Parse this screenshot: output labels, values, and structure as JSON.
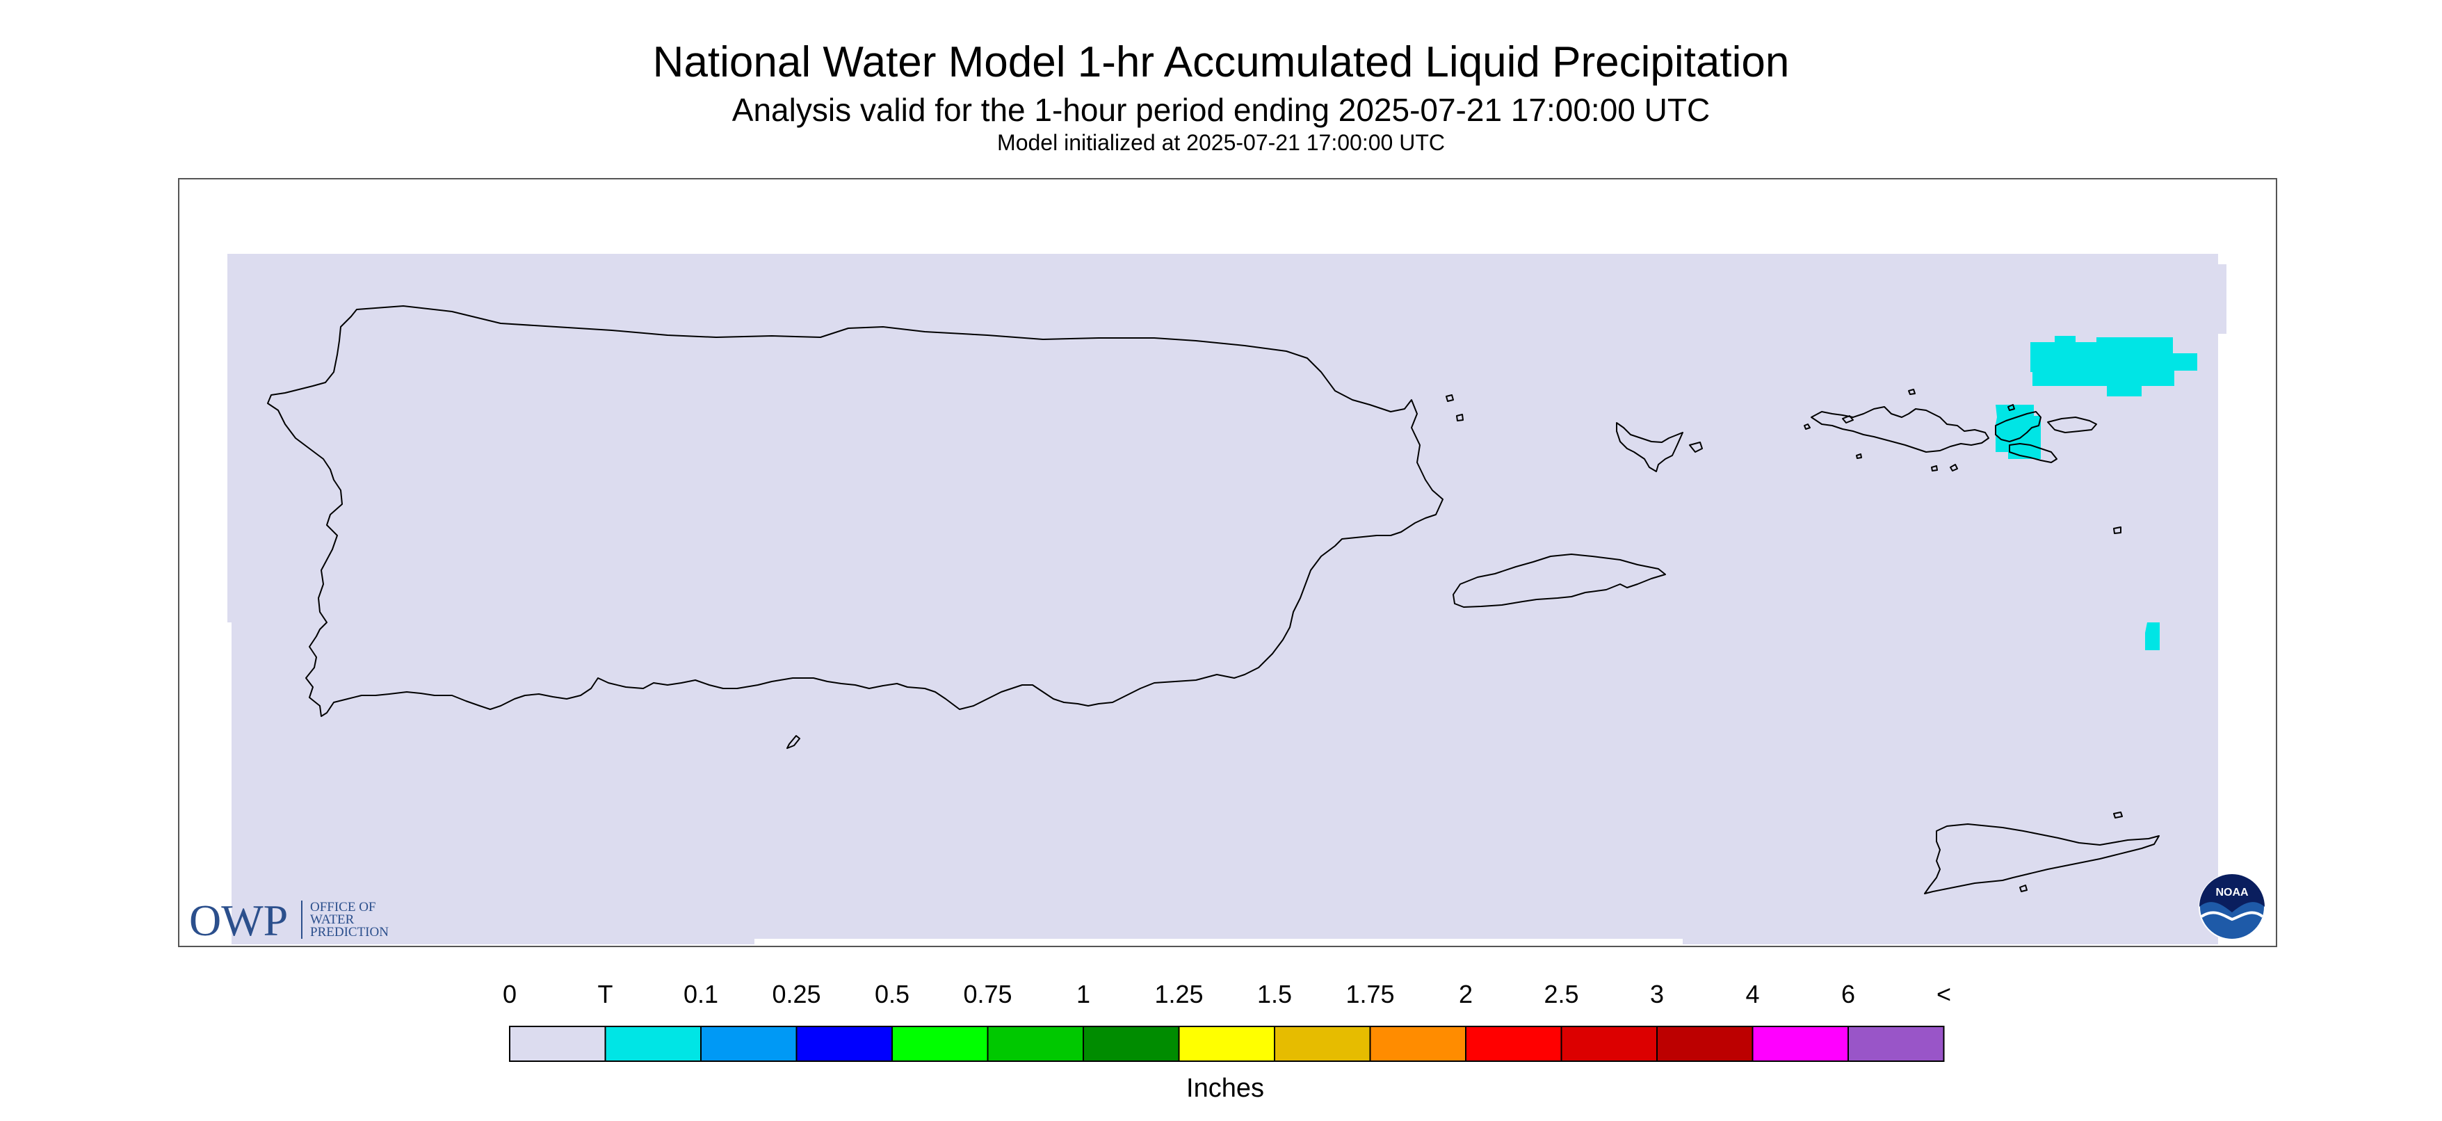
{
  "header": {
    "title": "National Water Model 1-hr Accumulated Liquid Precipitation",
    "subtitle": "Analysis valid for the 1-hour period ending 2025-07-21 17:00:00 UTC",
    "init": "Model initialized at 2025-07-21 17:00:00 UTC"
  },
  "logos": {
    "owp": {
      "mark": "OWP",
      "line1": "OFFICE OF",
      "line2": "WATER",
      "line3": "PREDICTION",
      "color": "#2b4f8c"
    },
    "noaa": {
      "text": "NOAA"
    }
  },
  "map": {
    "background_color": "#dcdcef",
    "precip_color": "#00e5e5",
    "precip_category": "T"
  },
  "legend": {
    "labels": [
      "0",
      "T",
      "0.1",
      "0.25",
      "0.5",
      "0.75",
      "1",
      "1.25",
      "1.5",
      "1.75",
      "2",
      "2.5",
      "3",
      "4",
      "6",
      "<"
    ],
    "colors": [
      "#dcdcef",
      "#00e5e5",
      "#0099f5",
      "#0000ff",
      "#00ff00",
      "#00c800",
      "#008c00",
      "#ffff00",
      "#e6bc00",
      "#ff8c00",
      "#ff0000",
      "#dc0000",
      "#bc0000",
      "#ff00ff",
      "#9955c8"
    ],
    "units": "Inches"
  }
}
